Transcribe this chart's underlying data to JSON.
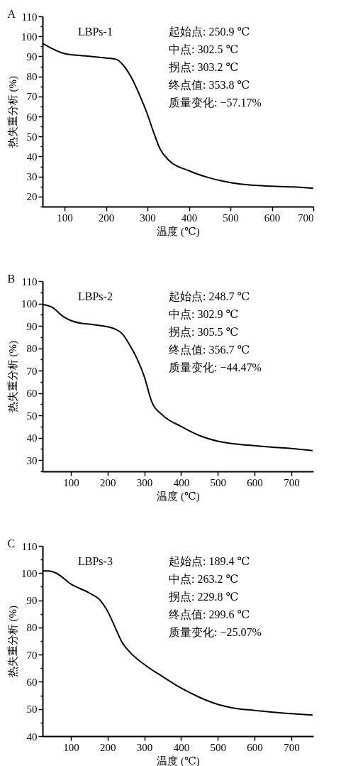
{
  "chart_data": [
    {
      "type": "line",
      "title": "A",
      "xlabel": "温度 (℃)",
      "ylabel": "热失重分析 (%)",
      "xlim": [
        47,
        700
      ],
      "ylim": [
        15,
        110
      ],
      "xticks": [
        100,
        200,
        300,
        400,
        500,
        600,
        700
      ],
      "yticks": [
        {
          "value": 15,
          "label": null
        },
        20,
        {
          "value": 25,
          "label": null
        },
        30,
        {
          "value": 35,
          "label": null
        },
        40,
        {
          "value": 45,
          "label": null
        },
        50,
        {
          "value": 55,
          "label": null
        },
        60,
        {
          "value": 65,
          "label": null
        },
        70,
        {
          "value": 75,
          "label": null
        },
        80,
        {
          "value": 85,
          "label": null
        },
        90,
        {
          "value": 95,
          "label": null
        },
        100,
        {
          "value": 105,
          "label": null
        },
        110
      ],
      "annotations": [
        "起始点: 250.9 ℃",
        "中点: 302.5 ℃",
        "拐点: 303.2 ℃",
        "终点值: 353.8 ℃",
        "质量变化: −57.17%"
      ],
      "series": [
        {
          "name": "LBPs-1",
          "color": "#000000",
          "x": [
            47,
            100,
            150,
            200,
            225,
            240,
            259,
            280,
            300,
            315,
            330,
            350,
            400,
            450,
            500,
            550,
            600,
            650,
            700
          ],
          "values": [
            96.5,
            91.4,
            90.2,
            89.2,
            88.5,
            86,
            80.3,
            71.2,
            61,
            52,
            44,
            38.4,
            32.9,
            29.3,
            27,
            25.7,
            25.2,
            24.8,
            24.1
          ]
        }
      ]
    },
    {
      "type": "line",
      "title": "B",
      "xlabel": "温度 (℃)",
      "ylabel": "热失重分析 (%)",
      "xlim": [
        23,
        760
      ],
      "ylim": [
        25,
        110
      ],
      "xticks": [
        100,
        200,
        300,
        400,
        500,
        600,
        700
      ],
      "yticks": [
        {
          "value": 25,
          "label": null
        },
        30,
        {
          "value": 35,
          "label": null
        },
        40,
        {
          "value": 45,
          "label": null
        },
        50,
        {
          "value": 55,
          "label": null
        },
        60,
        {
          "value": 65,
          "label": null
        },
        70,
        {
          "value": 75,
          "label": null
        },
        80,
        {
          "value": 85,
          "label": null
        },
        90,
        {
          "value": 95,
          "label": null
        },
        100,
        {
          "value": 105,
          "label": null
        },
        110
      ],
      "annotations": [
        "起始点: 248.7 ℃",
        "中点: 302.9 ℃",
        "拐点: 305.5 ℃",
        "终点值: 356.7 ℃",
        "质量变化: −44.47%"
      ],
      "series": [
        {
          "name": "LBPs-2",
          "color": "#000000",
          "x": [
            23,
            50,
            80,
            100,
            130,
            160,
            200,
            220,
            240,
            260,
            280,
            300,
            320,
            350,
            400,
            450,
            500,
            550,
            600,
            650,
            700,
            758
          ],
          "values": [
            99.6,
            98.2,
            94.1,
            92.4,
            91.1,
            90.6,
            89.6,
            88.6,
            86.5,
            81.5,
            75.4,
            67.3,
            56.2,
            50.1,
            45.1,
            41,
            38.5,
            37.2,
            36.5,
            35.8,
            35.2,
            34.3
          ]
        }
      ]
    },
    {
      "type": "line",
      "title": "C",
      "xlabel": "温度 (℃)",
      "ylabel": "热失重分析 (%)",
      "xlim": [
        23,
        760
      ],
      "ylim": [
        40,
        110
      ],
      "xticks": [
        100,
        200,
        300,
        400,
        500,
        600,
        700
      ],
      "yticks": [
        40,
        {
          "value": 45,
          "label": null
        },
        50,
        {
          "value": 55,
          "label": null
        },
        60,
        {
          "value": 65,
          "label": null
        },
        70,
        {
          "value": 75,
          "label": null
        },
        80,
        {
          "value": 85,
          "label": null
        },
        90,
        {
          "value": 95,
          "label": null
        },
        100,
        {
          "value": 105,
          "label": null
        },
        110
      ],
      "annotations": [
        "起始点: 189.4 ℃",
        "中点: 263.2 ℃",
        "拐点: 229.8 ℃",
        "终点值: 299.6 ℃",
        "质量变化: −25.07%"
      ],
      "series": [
        {
          "name": "LBPs-3",
          "color": "#000000",
          "x": [
            23,
            40,
            60,
            100,
            150,
            180,
            200,
            220,
            240,
            260,
            300,
            350,
            400,
            450,
            500,
            550,
            600,
            650,
            700,
            758
          ],
          "values": [
            100.8,
            100.8,
            100,
            96,
            92.7,
            90,
            86,
            80.2,
            74.4,
            71,
            66.4,
            61.9,
            57.7,
            54.3,
            51.7,
            50.2,
            49.5,
            48.8,
            48.3,
            47.8
          ]
        }
      ]
    }
  ]
}
